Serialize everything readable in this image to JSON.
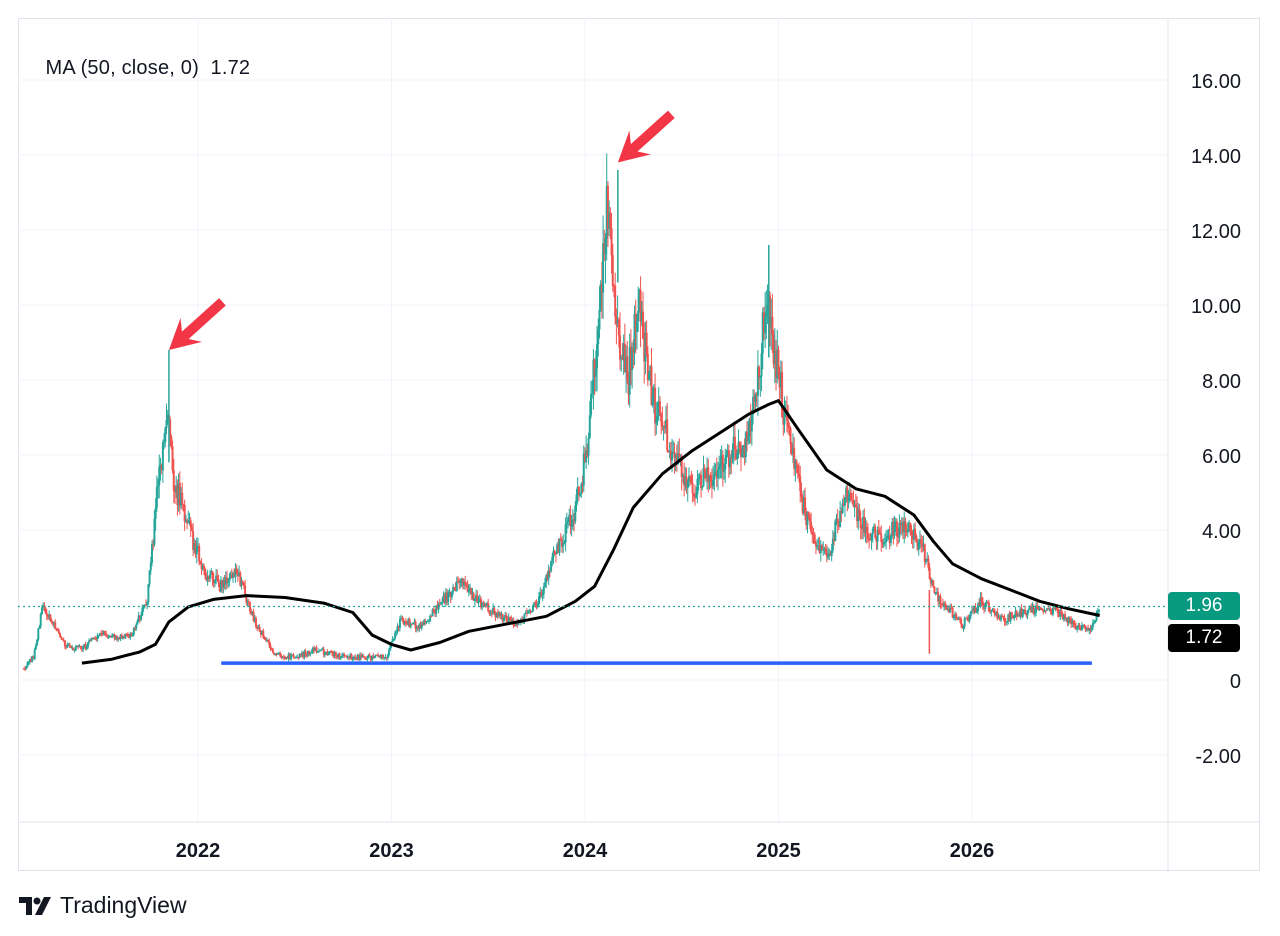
{
  "legend": {
    "indicator": "MA (50, close, 0)",
    "value": "1.72"
  },
  "brand": {
    "name": "TradingView",
    "logo_icon": "tradingview-logo-icon"
  },
  "price_labels": {
    "last_price": {
      "text": "1.96",
      "color": "#089981"
    },
    "ma_value": {
      "text": "1.72",
      "color": "#000000"
    }
  },
  "chart_data": {
    "type": "line",
    "title": "",
    "xlabel": "",
    "ylabel": "",
    "x_ticks": [
      "2022",
      "2023",
      "2024",
      "2025",
      "2026"
    ],
    "y_ticks": [
      "16.00",
      "14.00",
      "12.00",
      "10.00",
      "8.00",
      "6.00",
      "4.00",
      "0",
      "-2.00"
    ],
    "ylim": [
      -3.8,
      18.0
    ],
    "xlim": [
      2021.07,
      2026.97
    ],
    "grid": true,
    "colors": {
      "up": "#26a69a",
      "down": "#ef5350",
      "ma": "#000000",
      "support": "#2962ff",
      "arrow": "#f23645"
    },
    "series": [
      {
        "name": "",
        "style": "candles",
        "x": [
          2021.1,
          2021.15,
          2021.2,
          2021.25,
          2021.3,
          2021.35,
          2021.42,
          2021.5,
          2021.58,
          2021.66,
          2021.74,
          2021.79,
          2021.84,
          2021.88,
          2021.93,
          2021.98,
          2022.05,
          2022.12,
          2022.2,
          2022.3,
          2022.4,
          2022.5,
          2022.6,
          2022.7,
          2022.8,
          2022.9,
          2022.97,
          2023.05,
          2023.15,
          2023.25,
          2023.35,
          2023.45,
          2023.55,
          2023.65,
          2023.75,
          2023.82,
          2023.88,
          2023.95,
          2024.02,
          2024.08,
          2024.12,
          2024.17,
          2024.22,
          2024.28,
          2024.35,
          2024.45,
          2024.55,
          2024.65,
          2024.75,
          2024.85,
          2024.9,
          2024.94,
          2024.98,
          2025.05,
          2025.15,
          2025.25,
          2025.35,
          2025.45,
          2025.55,
          2025.65,
          2025.75,
          2025.8,
          2025.88,
          2025.95,
          2026.05,
          2026.15,
          2026.25,
          2026.35,
          2026.45,
          2026.55,
          2026.62,
          2026.66
        ],
        "values": [
          0.3,
          0.6,
          2.0,
          1.5,
          1.0,
          0.8,
          0.9,
          1.3,
          1.1,
          1.2,
          2.2,
          5.0,
          7.0,
          5.2,
          4.5,
          3.6,
          2.8,
          2.5,
          2.9,
          1.5,
          0.7,
          0.6,
          0.8,
          0.7,
          0.6,
          0.6,
          0.6,
          1.6,
          1.4,
          2.0,
          2.6,
          2.1,
          1.7,
          1.5,
          2.0,
          3.0,
          3.8,
          4.5,
          6.5,
          10.5,
          12.8,
          9.5,
          8.0,
          10.0,
          7.5,
          6.2,
          5.0,
          5.5,
          6.0,
          6.5,
          8.0,
          10.5,
          8.8,
          6.5,
          4.2,
          3.2,
          5.0,
          4.0,
          3.8,
          4.2,
          3.5,
          2.4,
          1.9,
          1.5,
          2.1,
          1.6,
          1.8,
          1.9,
          1.8,
          1.4,
          1.4,
          1.96
        ]
      },
      {
        "name": "MA (50, close, 0)",
        "style": "line",
        "x": [
          2021.4,
          2021.55,
          2021.7,
          2021.78,
          2021.85,
          2021.95,
          2022.08,
          2022.25,
          2022.45,
          2022.65,
          2022.8,
          2022.9,
          2023.0,
          2023.1,
          2023.25,
          2023.4,
          2023.6,
          2023.8,
          2023.95,
          2024.05,
          2024.15,
          2024.25,
          2024.4,
          2024.55,
          2024.7,
          2024.85,
          2024.95,
          2025.0,
          2025.1,
          2025.25,
          2025.4,
          2025.55,
          2025.7,
          2025.8,
          2025.9,
          2026.05,
          2026.2,
          2026.35,
          2026.5,
          2026.66
        ],
        "values": [
          0.45,
          0.55,
          0.75,
          0.95,
          1.55,
          1.95,
          2.15,
          2.25,
          2.2,
          2.05,
          1.8,
          1.2,
          0.95,
          0.8,
          1.0,
          1.3,
          1.5,
          1.7,
          2.1,
          2.5,
          3.5,
          4.6,
          5.5,
          6.1,
          6.6,
          7.1,
          7.35,
          7.45,
          6.7,
          5.6,
          5.1,
          4.9,
          4.4,
          3.7,
          3.1,
          2.7,
          2.4,
          2.1,
          1.9,
          1.72
        ]
      },
      {
        "name": "",
        "style": "hline",
        "x": [
          2022.12,
          2026.62
        ],
        "values": [
          0.45,
          0.45
        ]
      }
    ],
    "annotations": [
      {
        "type": "arrow",
        "points_to": {
          "x": 2021.85,
          "y": 8.8
        }
      },
      {
        "type": "arrow",
        "points_to": {
          "x": 2024.17,
          "y": 13.8
        }
      }
    ],
    "last_price_line": 1.96
  }
}
